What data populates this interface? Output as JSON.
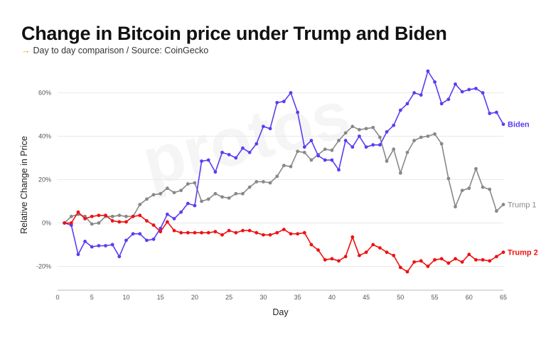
{
  "title": "Change in Bitcoin price under Trump and Biden",
  "subtitle": "Day to day comparison / Source: CoinGecko",
  "watermark": "protos",
  "colors": {
    "biden": "#5b3cf2",
    "trump1": "#888888",
    "trump2": "#ee1111",
    "arrow": "#f39c2d",
    "grid": "#e9e9e9"
  },
  "chart_data": {
    "type": "line",
    "title": "Change in Bitcoin price under Trump and Biden",
    "xlabel": "Day",
    "ylabel": "Relative Change in Price",
    "xlim": [
      0,
      66
    ],
    "ylim": [
      -31,
      70
    ],
    "xticks": [
      0,
      5,
      10,
      15,
      20,
      25,
      30,
      35,
      40,
      45,
      50,
      55,
      60,
      65
    ],
    "yticks": [
      -20,
      0,
      20,
      40,
      60
    ],
    "ytick_labels": [
      "-20%",
      "0%",
      "20%",
      "40%",
      "60%"
    ],
    "grid": true,
    "series": [
      {
        "name": "Biden",
        "color": "#5b3cf2",
        "x": [
          1,
          2,
          3,
          4,
          5,
          6,
          7,
          8,
          9,
          10,
          11,
          12,
          13,
          14,
          15,
          16,
          17,
          18,
          19,
          20,
          21,
          22,
          23,
          24,
          25,
          26,
          27,
          28,
          29,
          30,
          31,
          32,
          33,
          34,
          35,
          36,
          37,
          38,
          39,
          40,
          41,
          42,
          43,
          44,
          45,
          46,
          47,
          48,
          49,
          50,
          51,
          52,
          53,
          54,
          55,
          56,
          57,
          58,
          59,
          60,
          61,
          62,
          63,
          64,
          65
        ],
        "values": [
          0,
          -1,
          -14.5,
          -8.5,
          -11,
          -10.5,
          -10.5,
          -10,
          -15.5,
          -8,
          -5,
          -5,
          -8,
          -7.5,
          -2.5,
          4,
          2,
          5,
          9,
          8,
          28.5,
          29,
          23.5,
          32.5,
          31.5,
          30,
          34.5,
          32.5,
          36.5,
          44.5,
          43.5,
          55.5,
          56,
          60,
          51,
          35,
          38,
          31,
          29,
          29,
          24.5,
          38,
          35,
          40,
          35,
          36,
          36,
          42,
          45,
          52,
          55,
          60,
          59,
          70,
          65,
          55,
          57,
          64,
          60.5,
          61.5,
          62,
          60,
          50.5,
          51,
          45.5
        ]
      },
      {
        "name": "Trump 1",
        "color": "#888888",
        "x": [
          1,
          2,
          3,
          4,
          5,
          6,
          7,
          8,
          9,
          10,
          11,
          12,
          13,
          14,
          15,
          16,
          17,
          18,
          19,
          20,
          21,
          22,
          23,
          24,
          25,
          26,
          27,
          28,
          29,
          30,
          31,
          32,
          33,
          34,
          35,
          36,
          37,
          38,
          39,
          40,
          41,
          42,
          43,
          44,
          45,
          46,
          47,
          48,
          49,
          50,
          51,
          52,
          53,
          54,
          55,
          56,
          57,
          58,
          59,
          60,
          61,
          62,
          63,
          64,
          65
        ],
        "values": [
          0,
          3,
          4,
          3,
          -0.5,
          0,
          3,
          3,
          3.5,
          3,
          3,
          8.5,
          11,
          13,
          13.5,
          16,
          14,
          15,
          18,
          18.5,
          10,
          11,
          13.5,
          12,
          11.5,
          13.5,
          13.5,
          16.5,
          19,
          19,
          18.5,
          21.5,
          26.5,
          26,
          33,
          32.5,
          29,
          31.5,
          34,
          33.5,
          38,
          41.5,
          44.5,
          43,
          43.5,
          44,
          39.5,
          28.5,
          34,
          23,
          32.5,
          38,
          39.5,
          40,
          41,
          36.5,
          20.5,
          7.5,
          15,
          16,
          25,
          16.5,
          15.5,
          5.5,
          8.5
        ]
      },
      {
        "name": "Trump 2",
        "color": "#ee1111",
        "x": [
          1,
          2,
          3,
          4,
          5,
          6,
          7,
          8,
          9,
          10,
          11,
          12,
          13,
          14,
          15,
          16,
          17,
          18,
          19,
          20,
          21,
          22,
          23,
          24,
          25,
          26,
          27,
          28,
          29,
          30,
          31,
          32,
          33,
          34,
          35,
          36,
          37,
          38,
          39,
          40,
          41,
          42,
          43,
          44,
          45,
          46,
          47,
          48,
          49,
          50,
          51,
          52,
          53,
          54,
          55,
          56,
          57,
          58,
          59,
          60,
          61,
          62,
          63,
          64,
          65
        ],
        "values": [
          0,
          0,
          5,
          2,
          3,
          3.5,
          3.5,
          1,
          0.5,
          0.5,
          3,
          3.5,
          1,
          -1,
          -4,
          0.5,
          -3.5,
          -4.5,
          -4.5,
          -4.5,
          -4.5,
          -4.5,
          -4,
          -5.5,
          -3.5,
          -4.5,
          -3.5,
          -3.5,
          -4.5,
          -5.5,
          -5.5,
          -4.5,
          -3,
          -5,
          -5,
          -4.5,
          -10,
          -12.5,
          -17,
          -16.5,
          -17.5,
          -15.5,
          -6.5,
          -15,
          -13.5,
          -10,
          -11.5,
          -13.5,
          -15,
          -20.5,
          -22.5,
          -18,
          -17.5,
          -20,
          -17,
          -16.5,
          -18.5,
          -16.5,
          -18,
          -14.5,
          -17,
          -17,
          -17.5,
          -15.5,
          -13.5
        ]
      }
    ]
  }
}
